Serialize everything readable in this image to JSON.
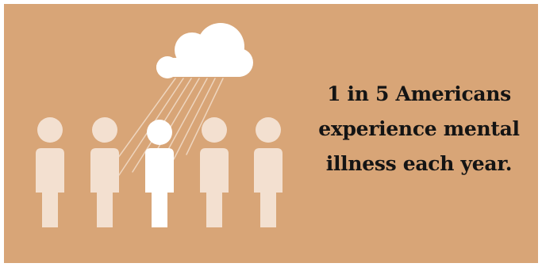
{
  "statistic": {
    "lines": [
      "1 in 5 Americans",
      "experience mental",
      "illness each year."
    ]
  },
  "colors": {
    "background": "#d8a577",
    "figure_faded": "#f3e0d0",
    "figure_highlight": "#ffffff",
    "cloud": "#ffffff",
    "text": "#141414"
  },
  "icons": {
    "cloud": "rain-cloud-icon",
    "person": "person-icon"
  }
}
